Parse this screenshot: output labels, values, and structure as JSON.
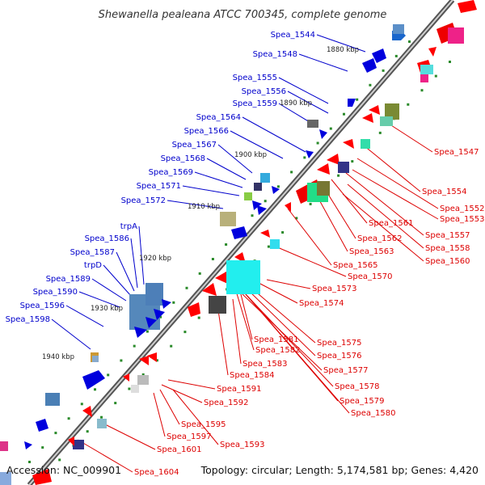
{
  "title": "Shewanella pealeana ATCC 700345, complete genome",
  "footer": {
    "accession": "Accession: NC_009901",
    "topology": "Topology: circular; Length: 5,174,581 bp; Genes: 4,420"
  },
  "ticks": [
    "1880 kbp",
    "1890 kbp",
    "1900 kbp",
    "1910 kbp",
    "1920 kbp",
    "1930 kbp",
    "1940 kbp"
  ],
  "left_labels": [
    "Spea_1544",
    "Spea_1548",
    "Spea_1555",
    "Spea_1556",
    "Spea_1559",
    "Spea_1564",
    "Spea_1566",
    "Spea_1567",
    "Spea_1568",
    "Spea_1569",
    "Spea_1571",
    "Spea_1572",
    "trpA",
    "Spea_1586",
    "Spea_1587",
    "trpD",
    "Spea_1589",
    "Spea_1590",
    "Spea_1596",
    "Spea_1598"
  ],
  "right_labels": [
    "Spea_1547",
    "Spea_1554",
    "Spea_1552",
    "Spea_1553",
    "Spea_1561",
    "Spea_1557",
    "Spea_1562",
    "Spea_1558",
    "Spea_1563",
    "Spea_1560",
    "Spea_1565",
    "Spea_1570",
    "Spea_1573",
    "Spea_1574",
    "Spea_1581",
    "Spea_1575",
    "Spea_1582",
    "Spea_1576",
    "Spea_1583",
    "Spea_1577",
    "Spea_1584",
    "Spea_1578",
    "Spea_1591",
    "Spea_1579",
    "Spea_1592",
    "Spea_1580",
    "Spea_1595",
    "Spea_1597",
    "Spea_1593",
    "Spea_1601",
    "Spea_1604"
  ],
  "colors": {
    "forward_label": "#0000cc",
    "reverse_label": "#dd0000",
    "backbone": "#777777",
    "gc_dots": "#2a8a2a"
  }
}
